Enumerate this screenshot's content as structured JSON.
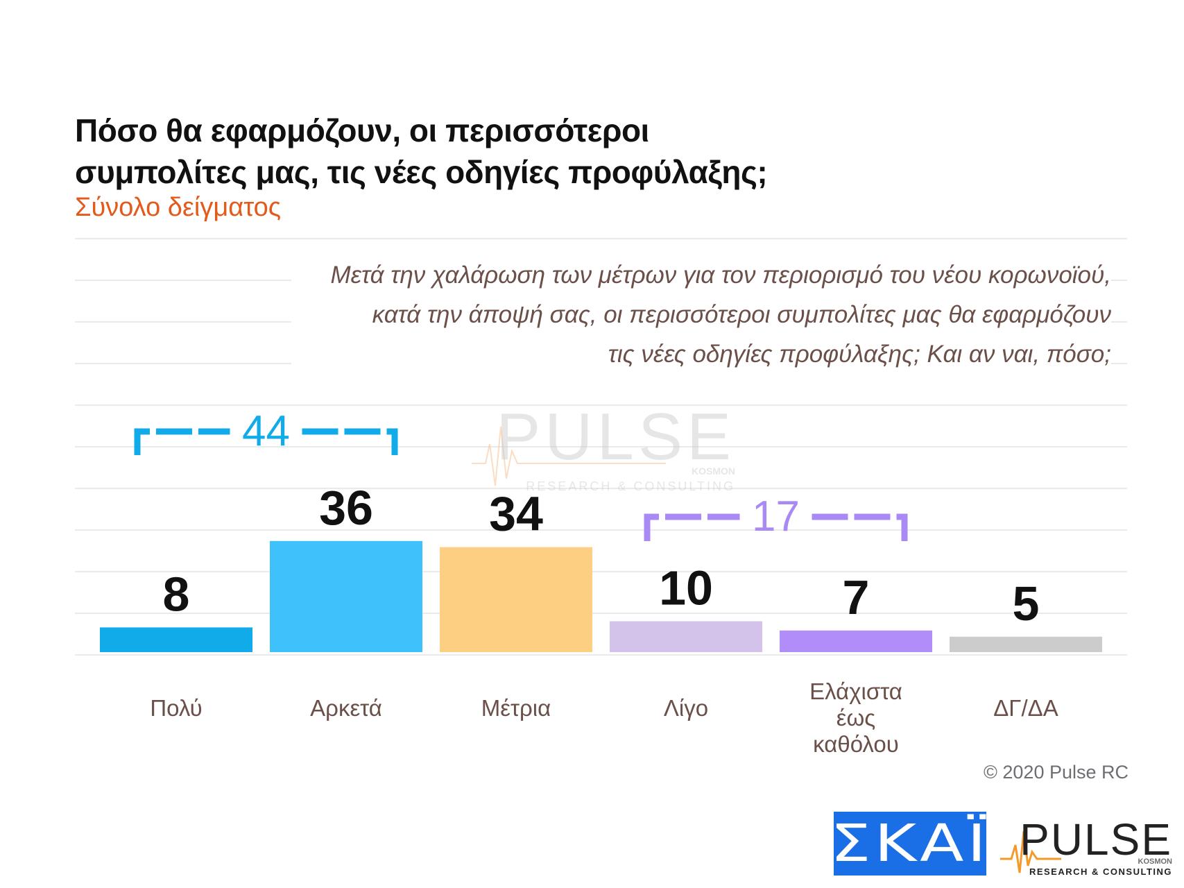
{
  "title_line1": "Πόσο θα εφαρμόζουν, οι περισσότεροι",
  "title_line2": "συμπολίτες μας, τις νέες οδηγίες προφύλαξης;",
  "subtitle": "Σύνολο δείγματος",
  "question": {
    "line1": "Μετά την χαλάρωση των μέτρων για τον περιορισμό του νέου κορωνοϊού,",
    "line2": "κατά την άποψή σας, οι περισσότεροι συμπολίτες μας θα εφαρμόζουν",
    "line3": "τις νέες οδηγίες προφύλαξης; Και αν ναι, πόσο;"
  },
  "copyright": "© 2020 Pulse RC",
  "watermark": {
    "brand": "PULSE",
    "tag1": "KOSMON",
    "tag2": "RESEARCH & CONSULTING"
  },
  "logos": {
    "skai": "ΣΚΑΪ",
    "pulse": "PULSE",
    "pulse_tag1": "KOSMON",
    "pulse_tag2": "RESEARCH & CONSULTING"
  },
  "colors": {
    "title": "#111111",
    "subtitle": "#e35a1a",
    "question": "#6b4f49",
    "grid": "#e3e3e3",
    "label": "#6b4f49",
    "bracket_blue": "#12abea",
    "bracket_purple": "#a98af5",
    "skai_bg": "#1a6fe6",
    "pulse_orange": "#f49a2a"
  },
  "chart_data": {
    "type": "bar",
    "categories": [
      "Πολύ",
      "Αρκετά",
      "Μέτρια",
      "Λίγο",
      "Ελάχιστα έως καθόλου",
      "ΔΓ/ΔΑ"
    ],
    "values": [
      8,
      36,
      34,
      10,
      7,
      5
    ],
    "colors": [
      "#12abea",
      "#3fc2fb",
      "#fdcf83",
      "#d3c3eb",
      "#b18df9",
      "#cccccc"
    ],
    "groups": [
      {
        "label": "44",
        "from": 0,
        "to": 1,
        "color": "#12abea"
      },
      {
        "label": "17",
        "from": 3,
        "to": 4,
        "color": "#a98af5"
      }
    ],
    "title": "Πόσο θα εφαρμόζουν, οι περισσότεροι συμπολίτες μας, τις νέες οδηγίες προφύλαξης;",
    "subtitle": "Σύνολο δείγματος",
    "grid": true
  }
}
